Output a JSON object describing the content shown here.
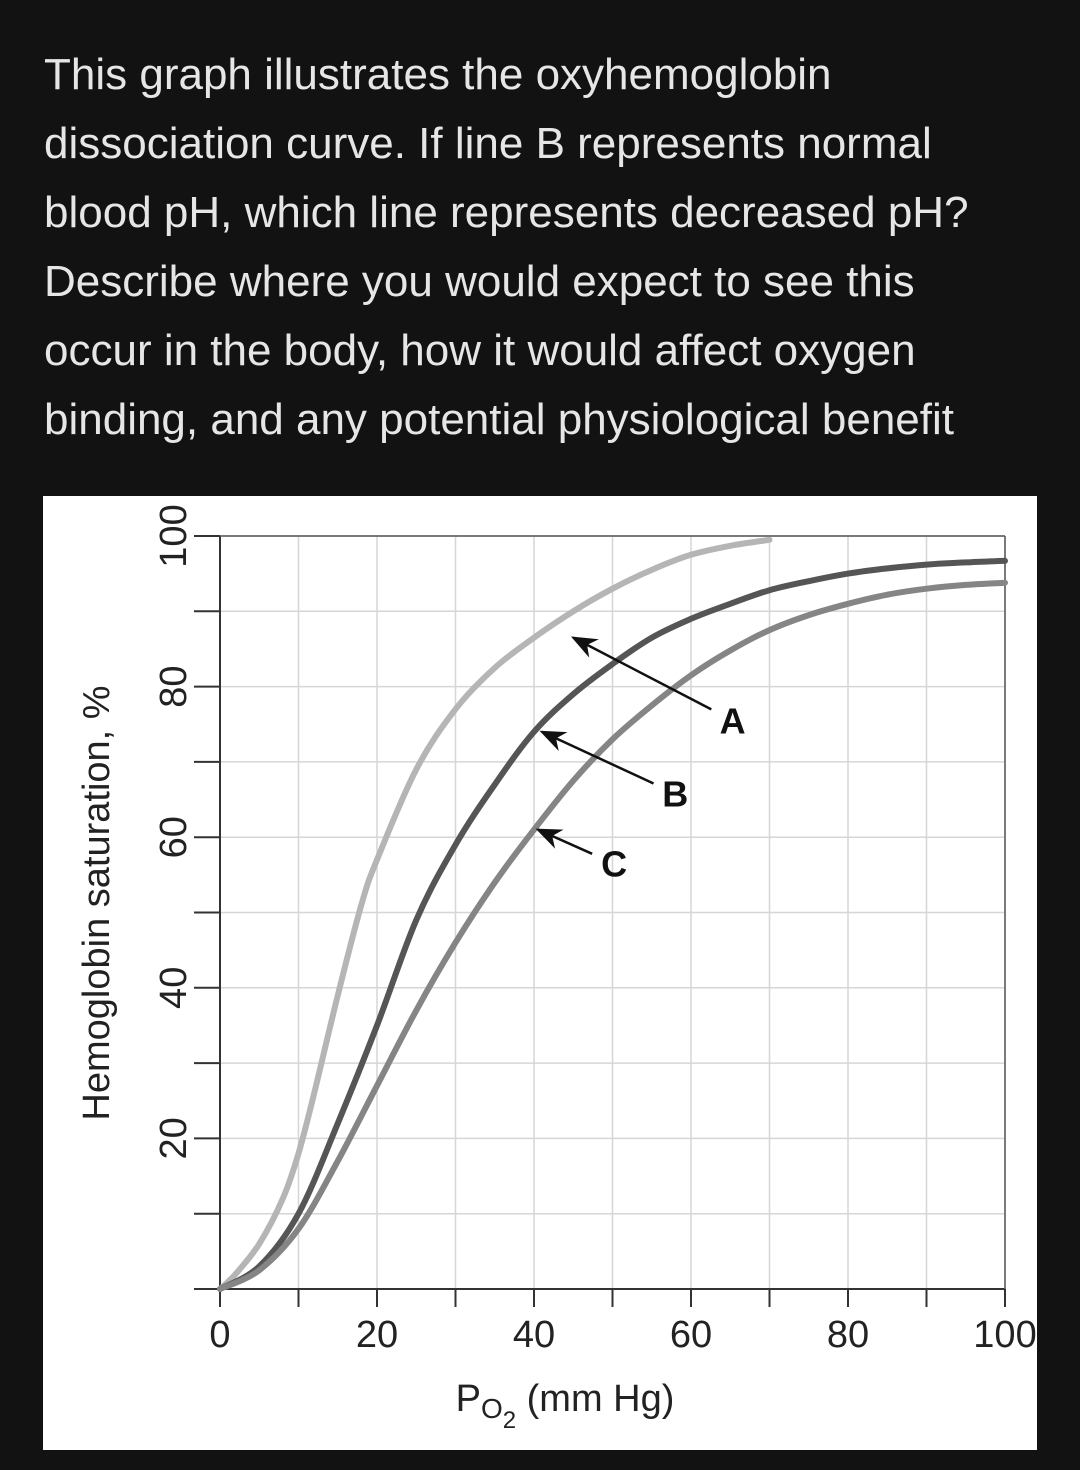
{
  "question": {
    "text": "This graph illustrates the oxyhemoglobin dissociation curve. If line B represents normal blood pH, which line represents decreased pH? Describe where you would expect to see this occur in the body, how it would affect oxygen binding, and any potential physiological benefit"
  },
  "chart_data": {
    "type": "line",
    "xlabel_main": "P",
    "xlabel_sub": "O",
    "xlabel_sub2": "2",
    "xlabel_unit": " (mm Hg)",
    "ylabel": "Hemoglobin saturation, %",
    "xlim": [
      0,
      100
    ],
    "ylim": [
      0,
      100
    ],
    "x_ticks": [
      0,
      20,
      40,
      60,
      80,
      100
    ],
    "y_ticks": [
      20,
      40,
      60,
      80,
      100
    ],
    "grid": true,
    "grid_step": 10,
    "series": [
      {
        "name": "A",
        "color": "#b5b5b5",
        "x": [
          0,
          2,
          5,
          8,
          10,
          12,
          15,
          18,
          20,
          25,
          30,
          35,
          40,
          45,
          50,
          55,
          60,
          65,
          70
        ],
        "y": [
          0,
          2,
          6,
          12,
          18,
          26,
          39,
          51,
          57,
          69,
          77,
          82.5,
          86.5,
          90,
          93,
          95.5,
          97.5,
          98.7,
          99.5
        ]
      },
      {
        "name": "B",
        "color": "#555555",
        "x": [
          0,
          5,
          10,
          15,
          20,
          25,
          30,
          35,
          40,
          45,
          50,
          55,
          60,
          65,
          70,
          75,
          80,
          85,
          90,
          95,
          100
        ],
        "y": [
          0,
          3,
          10,
          22,
          35,
          49,
          59,
          67,
          74,
          79,
          83,
          86.5,
          89,
          91,
          92.8,
          94,
          95,
          95.7,
          96.2,
          96.5,
          96.7
        ]
      },
      {
        "name": "C",
        "color": "#858585",
        "x": [
          0,
          5,
          10,
          15,
          20,
          25,
          30,
          35,
          40,
          45,
          50,
          55,
          60,
          65,
          70,
          75,
          80,
          85,
          90,
          95,
          100
        ],
        "y": [
          0,
          2.5,
          8,
          17,
          27,
          37,
          46,
          54,
          61,
          67.5,
          73,
          77.5,
          81.5,
          84.8,
          87.5,
          89.5,
          91,
          92.2,
          93,
          93.5,
          93.8
        ]
      }
    ],
    "annotations": [
      {
        "label": "A",
        "point_x": 45,
        "point_y": 86.5,
        "text_x": 65.3,
        "text_y": 75.5
      },
      {
        "label": "B",
        "point_x": 41,
        "point_y": 74,
        "text_x": 58,
        "text_y": 65.8
      },
      {
        "label": "C",
        "point_x": 40.5,
        "point_y": 61,
        "text_x": 50.2,
        "text_y": 56.5
      }
    ]
  }
}
